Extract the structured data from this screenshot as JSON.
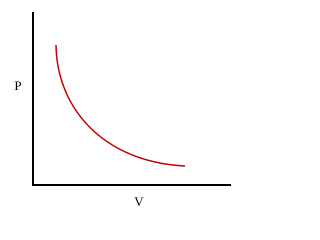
{
  "axes": {
    "y_label": "P",
    "x_label": "V"
  }
}
